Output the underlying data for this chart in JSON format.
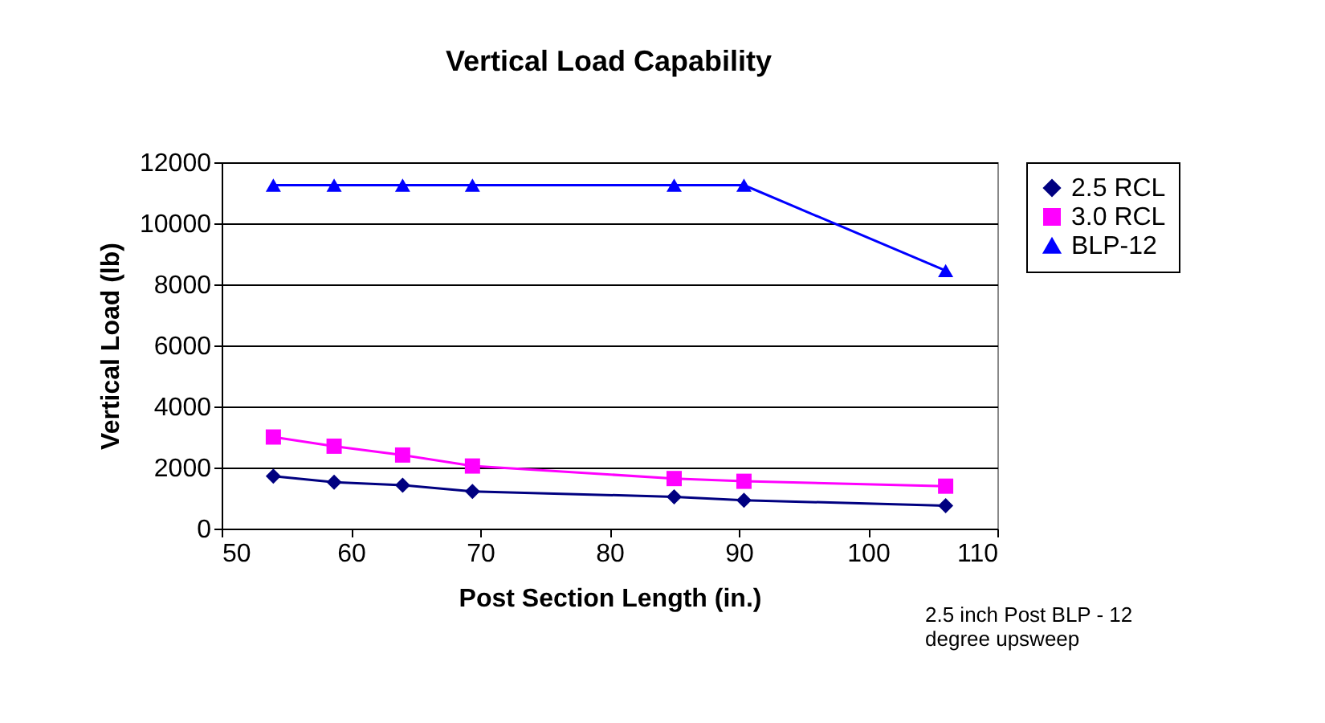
{
  "chart_data": {
    "type": "line",
    "title": "Vertical Load Capability",
    "xlabel": "Post Section Length (in.)",
    "ylabel": "Vertical Load (lb)",
    "x": [
      54,
      58.7,
      64,
      69.4,
      85,
      90.4,
      106
    ],
    "series": [
      {
        "name": "2.5 RCL",
        "color": "#000080",
        "marker": "diamond",
        "values": [
          1720,
          1520,
          1420,
          1220,
          1040,
          930,
          750
        ]
      },
      {
        "name": "3.0 RCL",
        "color": "#ff00ff",
        "marker": "square",
        "values": [
          3000,
          2700,
          2410,
          2050,
          1640,
          1550,
          1390
        ]
      },
      {
        "name": "BLP-12",
        "color": "#0000ff",
        "marker": "triangle",
        "values": [
          11250,
          11250,
          11250,
          11250,
          11250,
          11250,
          8450
        ]
      }
    ],
    "xlim": [
      50,
      110
    ],
    "xticks": [
      50,
      60,
      70,
      80,
      90,
      100,
      110
    ],
    "ylim": [
      0,
      12000
    ],
    "yticks": [
      0,
      2000,
      4000,
      6000,
      8000,
      10000,
      12000
    ],
    "grid": "y",
    "legend": "right",
    "line_style": "solid",
    "annotations": [
      "2.5 inch Post BLP - 12 degree upsweep"
    ]
  }
}
